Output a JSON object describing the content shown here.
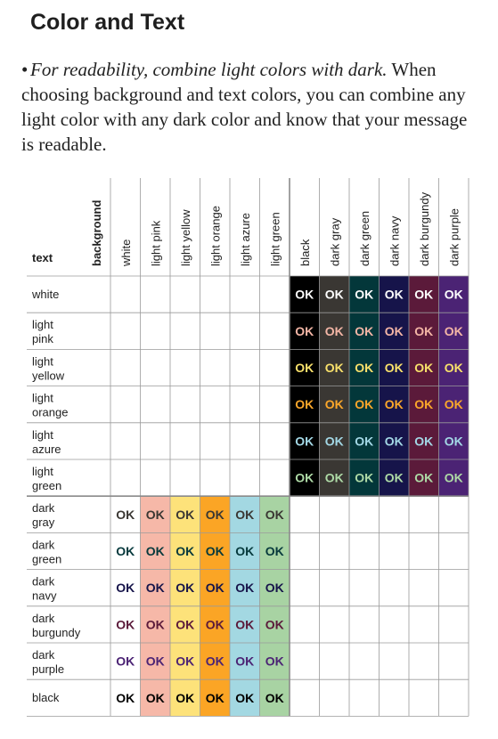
{
  "title": "Color and Text",
  "intro": {
    "bullet": "•",
    "lead": "For readability, combine light colors with dark.",
    "body": "When choosing background and text colors, you can combine any light color with any dark color and know that your message is readable."
  },
  "table": {
    "corner_text_label": "text",
    "corner_background_label": "background",
    "ok_label": "OK",
    "columns": [
      {
        "label": "white",
        "color": "#ffffff",
        "group": "light"
      },
      {
        "label": "light pink",
        "color": "#f6b8a8",
        "group": "light"
      },
      {
        "label": "light yellow",
        "color": "#fde27a",
        "group": "light"
      },
      {
        "label": "light orange",
        "color": "#fba525",
        "group": "light"
      },
      {
        "label": "light azure",
        "color": "#a3d8e2",
        "group": "light"
      },
      {
        "label": "light green",
        "color": "#a8d3a3",
        "group": "light"
      },
      {
        "label": "black",
        "color": "#000000",
        "group": "dark"
      },
      {
        "label": "dark gray",
        "color": "#3a3733",
        "group": "dark"
      },
      {
        "label": "dark green",
        "color": "#03373a",
        "group": "dark"
      },
      {
        "label": "dark navy",
        "color": "#16144a",
        "group": "dark"
      },
      {
        "label": "dark burgundy",
        "color": "#5b1a3a",
        "group": "dark"
      },
      {
        "label": "dark purple",
        "color": "#4b2374",
        "group": "dark"
      }
    ],
    "rows": [
      {
        "label": "white",
        "color": "#ffffff",
        "group": "light"
      },
      {
        "label": "light\npink",
        "color": "#f4b6a6",
        "group": "light"
      },
      {
        "label": "light\nyellow",
        "color": "#f8e06b",
        "group": "light"
      },
      {
        "label": "light\norange",
        "color": "#fba72a",
        "group": "light"
      },
      {
        "label": "light\nazure",
        "color": "#a3d8e6",
        "group": "light"
      },
      {
        "label": "light\ngreen",
        "color": "#aedaa6",
        "group": "light"
      },
      {
        "label": "dark\ngray",
        "color": "#3a3733",
        "group": "dark"
      },
      {
        "label": "dark\ngreen",
        "color": "#06393c",
        "group": "dark"
      },
      {
        "label": "dark\nnavy",
        "color": "#16144a",
        "group": "dark"
      },
      {
        "label": "dark\nburgundy",
        "color": "#5b1a3a",
        "group": "dark"
      },
      {
        "label": "dark\npurple",
        "color": "#4b2374",
        "group": "dark"
      },
      {
        "label": "black",
        "color": "#000000",
        "group": "dark"
      }
    ],
    "colors": {
      "grid_line": "#9a9a9a",
      "group_divider": "#8a8a8a",
      "label_text": "#222222"
    }
  }
}
